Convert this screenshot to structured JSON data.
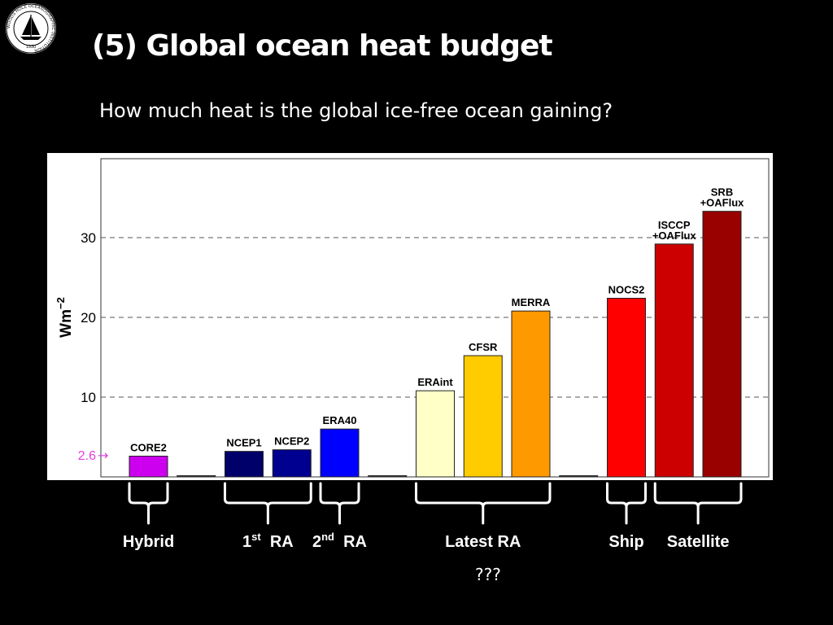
{
  "slide": {
    "title": "(5) Global ocean heat budget",
    "subtitle": "How much heat is the global ice-free ocean gaining?",
    "footnote": "???"
  },
  "logo": {
    "ring_text": "WOODS HOLE OCEANOGRAPHIC INSTITUTION",
    "year": "1930",
    "icon": "sailing-ship-seal"
  },
  "chart_data": {
    "type": "bar",
    "ylabel_base": "Wm",
    "ylabel_exp": "−2",
    "ylim": [
      0,
      40
    ],
    "yticks": [
      10,
      20,
      30
    ],
    "grid": "dashed horizontal at ticks",
    "annotation": {
      "text": "2.6",
      "arrow": "→",
      "value": 2.6,
      "color": "#e040e0"
    },
    "bars": [
      {
        "label": [
          "CORE2"
        ],
        "value": 2.6,
        "color": "#cc00ee"
      },
      {
        "label": [],
        "value": 0.15,
        "color": "#444444"
      },
      {
        "label": [
          "NCEP1"
        ],
        "value": 3.2,
        "color": "#00006b"
      },
      {
        "label": [
          "NCEP2"
        ],
        "value": 3.4,
        "color": "#000090"
      },
      {
        "label": [
          "ERA40"
        ],
        "value": 6.0,
        "color": "#0000ff"
      },
      {
        "label": [],
        "value": 0.15,
        "color": "#444444"
      },
      {
        "label": [
          "ERAint"
        ],
        "value": 10.8,
        "color": "#ffffc8"
      },
      {
        "label": [
          "CFSR"
        ],
        "value": 15.2,
        "color": "#ffcc00"
      },
      {
        "label": [
          "MERRA"
        ],
        "value": 20.8,
        "color": "#ff9900"
      },
      {
        "label": [],
        "value": 0.15,
        "color": "#444444"
      },
      {
        "label": [
          "NOCS2"
        ],
        "value": 22.4,
        "color": "#ff0000"
      },
      {
        "label": [
          "ISCCP",
          "+OAFlux"
        ],
        "value": 29.2,
        "color": "#cc0000"
      },
      {
        "label": [
          "SRB",
          "+OAFlux"
        ],
        "value": 33.3,
        "color": "#990000"
      }
    ],
    "groups": [
      {
        "label": "Hybrid",
        "from": 0,
        "to": 0
      },
      {
        "label": "1",
        "sup": "st",
        "tail": "RA",
        "from": 2,
        "to": 3
      },
      {
        "label": "2",
        "sup": "nd",
        "tail": "RA",
        "from": 4,
        "to": 4
      },
      {
        "label": "Latest RA",
        "from": 6,
        "to": 8
      },
      {
        "label": "Ship",
        "from": 10,
        "to": 10
      },
      {
        "label": "Satellite",
        "from": 11,
        "to": 12
      }
    ]
  }
}
